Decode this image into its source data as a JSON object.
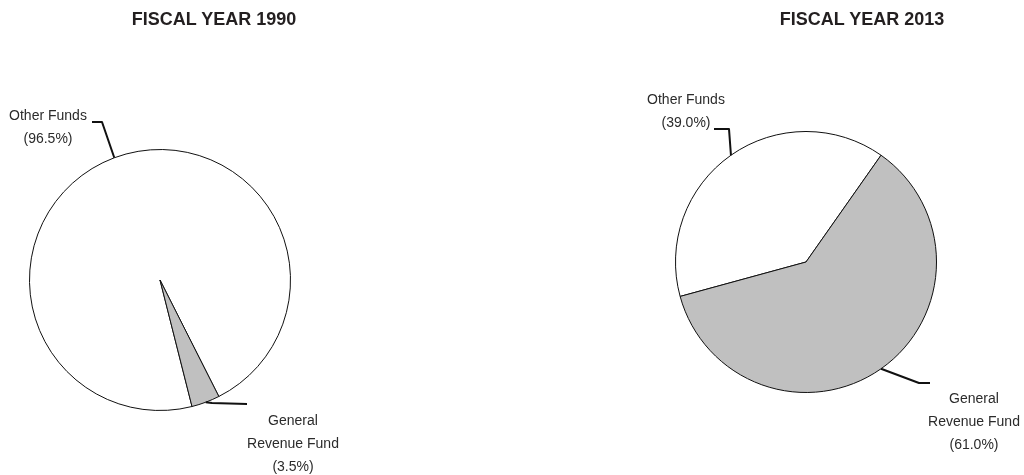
{
  "chart_data": [
    {
      "type": "pie",
      "title": "FISCAL YEAR 1990",
      "categories": [
        "Other Funds",
        "General Revenue Fund"
      ],
      "values": [
        96.5,
        3.5
      ],
      "colors": [
        "#ffffff",
        "#c0c0c0"
      ],
      "value_labels": [
        "(96.5%)",
        "(3.5%)"
      ]
    },
    {
      "type": "pie",
      "title": "FISCAL YEAR 2013",
      "categories": [
        "Other Funds",
        "General Revenue Fund"
      ],
      "values": [
        39.0,
        61.0
      ],
      "colors": [
        "#ffffff",
        "#c0c0c0"
      ],
      "value_labels": [
        "(39.0%)",
        "(61.0%)"
      ]
    }
  ]
}
